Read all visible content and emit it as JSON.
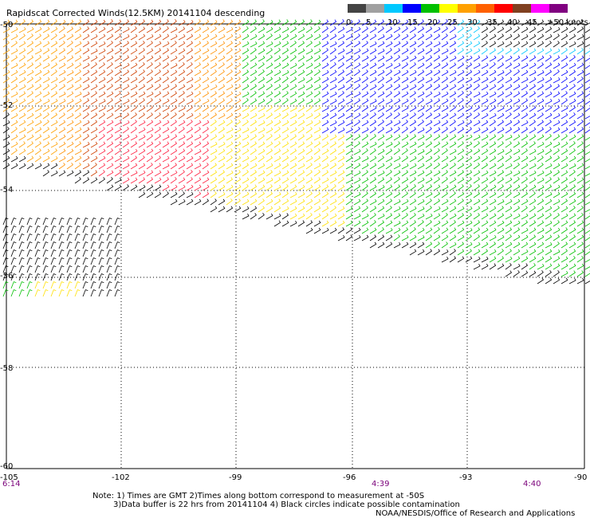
{
  "title": "Rapidscat Corrected Winds(12.5KM) 20141104 descending",
  "legend": {
    "colors": [
      "#444444",
      "#a0a0a0",
      "#00c8ff",
      "#0000ff",
      "#00c000",
      "#ffff00",
      "#ffa000",
      "#ff6000",
      "#ff0000",
      "#804020",
      "#ff00ff",
      "#800080"
    ],
    "labels": [
      "0",
      "5",
      "10",
      "15",
      "20",
      "25",
      "30",
      "35",
      "40",
      "45",
      ">50 knots"
    ]
  },
  "lat_labels": [
    "-50",
    "-52",
    "-54",
    "-56",
    "-58",
    "-60"
  ],
  "lon_labels": [
    "-105",
    "-102",
    "-99",
    "-96",
    "-93",
    "-90"
  ],
  "times": [
    "6:14",
    "4:39",
    "4:40"
  ],
  "notes": {
    "line1": "Note: 1) Times are GMT 2)Times along bottom correspond to measurement at -50S",
    "line2": "3)Data buffer is 22 hrs from 20141104 4) Black circles indicate possible contamination",
    "line3": "NOAA/NESDIS/Office of Research and Applications"
  }
}
